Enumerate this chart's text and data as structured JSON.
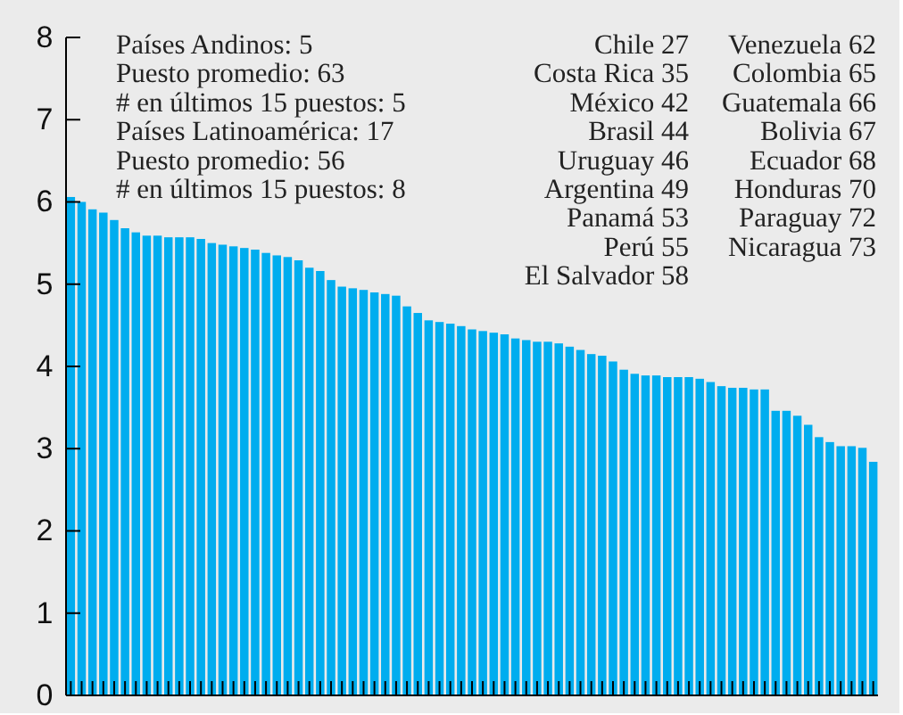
{
  "chart_data": {
    "type": "bar",
    "categories": [
      null,
      null,
      null,
      null,
      null,
      null,
      null,
      null,
      null,
      null,
      null,
      null,
      null,
      null,
      null,
      null,
      null,
      null,
      null,
      null,
      null,
      null,
      null,
      null,
      null,
      null,
      null,
      null,
      null,
      null,
      null,
      null,
      null,
      null,
      null,
      null,
      null,
      null,
      null,
      null,
      null,
      null,
      null,
      null,
      null,
      null,
      null,
      null,
      null,
      null,
      null,
      null,
      null,
      null,
      null,
      null,
      null,
      null,
      null,
      null,
      null,
      null,
      null,
      null,
      null,
      null,
      null,
      null,
      null,
      null,
      null,
      null,
      null,
      null,
      null
    ],
    "values": [
      6.06,
      6.0,
      5.91,
      5.87,
      5.78,
      5.68,
      5.63,
      5.59,
      5.59,
      5.57,
      5.57,
      5.57,
      5.55,
      5.5,
      5.48,
      5.46,
      5.44,
      5.42,
      5.38,
      5.35,
      5.33,
      5.29,
      5.2,
      5.16,
      5.05,
      4.97,
      4.95,
      4.93,
      4.9,
      4.88,
      4.86,
      4.73,
      4.65,
      4.56,
      4.54,
      4.52,
      4.49,
      4.45,
      4.43,
      4.41,
      4.39,
      4.34,
      4.32,
      4.3,
      4.3,
      4.28,
      4.24,
      4.2,
      4.15,
      4.13,
      4.06,
      3.96,
      3.91,
      3.89,
      3.89,
      3.87,
      3.87,
      3.87,
      3.85,
      3.81,
      3.76,
      3.74,
      3.74,
      3.72,
      3.72,
      3.46,
      3.46,
      3.4,
      3.29,
      3.14,
      3.08,
      3.03,
      3.03,
      3.01,
      2.84
    ],
    "color": "#00adef",
    "ylim": [
      0,
      8
    ],
    "yticks": [
      0,
      1,
      2,
      3,
      4,
      5,
      6,
      7,
      8
    ],
    "grid": false,
    "annotations": [
      "Países Andinos: 5\nPuesto promedio: 63\n# en últimos 15 puestos: 5\nPaíses Latinoamérica: 17\nPuesto promedio: 56\n# en últimos 15 puestos: 8",
      "Chile 27\nCosta Rica 35\nMéxico 42\nBrasil 44\nUruguay 46\nArgentina 49\nPanamá 53\nPerú 55\nEl Salvador 58",
      "Venezuela 62\nColombia 65\nGuatemala 66\nBolivia 67\nEcuador 68\nHonduras 70\nParaguay 72\nNicaragua 73"
    ]
  }
}
